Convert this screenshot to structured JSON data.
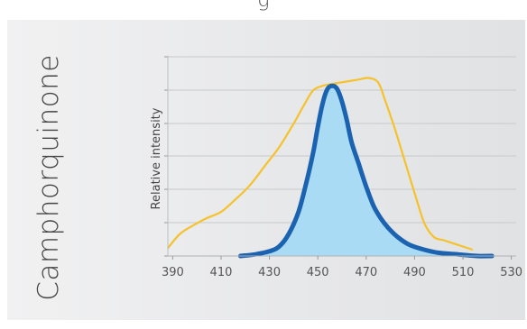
{
  "header": {
    "title_partial": "g"
  },
  "side_title": "Camphorquinone",
  "colors": {
    "panel": "#e6e7e9",
    "grid": "#c8c9cb",
    "axis": "#bdbec0",
    "source_line": "#f5c22c",
    "absorbance_line": "#1b63b0",
    "absorbance_fill": "#a9dcf4"
  },
  "chart_data": {
    "type": "line",
    "xlabel": "",
    "ylabel": "Relative intensity",
    "xlim": [
      388,
      532
    ],
    "ylim": [
      0,
      1.15
    ],
    "x_ticks": [
      390,
      410,
      430,
      450,
      470,
      490,
      510,
      530
    ],
    "y_gridlines": [
      0,
      0.2,
      0.4,
      0.6,
      0.8,
      1.0,
      1.2
    ],
    "grid": true,
    "legend": "none",
    "series": [
      {
        "key": "source",
        "style": "line",
        "color": "#f5c22c",
        "points": [
          [
            388,
            0.05
          ],
          [
            393,
            0.14
          ],
          [
            398,
            0.19
          ],
          [
            404,
            0.24
          ],
          [
            410,
            0.28
          ],
          [
            416,
            0.36
          ],
          [
            422,
            0.45
          ],
          [
            428,
            0.57
          ],
          [
            434,
            0.69
          ],
          [
            440,
            0.84
          ],
          [
            444,
            0.95
          ],
          [
            448,
            1.05
          ],
          [
            452,
            1.08
          ],
          [
            455,
            1.09
          ],
          [
            459,
            1.1
          ],
          [
            463,
            1.11
          ],
          [
            467,
            1.12
          ],
          [
            471,
            1.13
          ],
          [
            475,
            1.1
          ],
          [
            478,
            0.98
          ],
          [
            482,
            0.8
          ],
          [
            486,
            0.6
          ],
          [
            490,
            0.4
          ],
          [
            494,
            0.21
          ],
          [
            498,
            0.12
          ],
          [
            502,
            0.1
          ],
          [
            508,
            0.07
          ],
          [
            514,
            0.04
          ]
        ]
      },
      {
        "key": "camphorquinone",
        "style": "area",
        "color": "#1b63b0",
        "fill": "#a9dcf4",
        "points": [
          [
            418,
            0.0
          ],
          [
            424,
            0.01
          ],
          [
            430,
            0.03
          ],
          [
            434,
            0.06
          ],
          [
            438,
            0.14
          ],
          [
            442,
            0.28
          ],
          [
            445,
            0.45
          ],
          [
            448,
            0.65
          ],
          [
            450,
            0.82
          ],
          [
            452,
            0.97
          ],
          [
            454,
            1.06
          ],
          [
            456,
            1.08
          ],
          [
            458,
            1.06
          ],
          [
            460,
            0.98
          ],
          [
            462,
            0.86
          ],
          [
            464,
            0.72
          ],
          [
            467,
            0.58
          ],
          [
            470,
            0.44
          ],
          [
            473,
            0.32
          ],
          [
            476,
            0.24
          ],
          [
            479,
            0.18
          ],
          [
            483,
            0.12
          ],
          [
            488,
            0.07
          ],
          [
            494,
            0.04
          ],
          [
            500,
            0.02
          ],
          [
            508,
            0.01
          ],
          [
            516,
            0.0
          ],
          [
            522,
            0.0
          ]
        ]
      }
    ]
  }
}
